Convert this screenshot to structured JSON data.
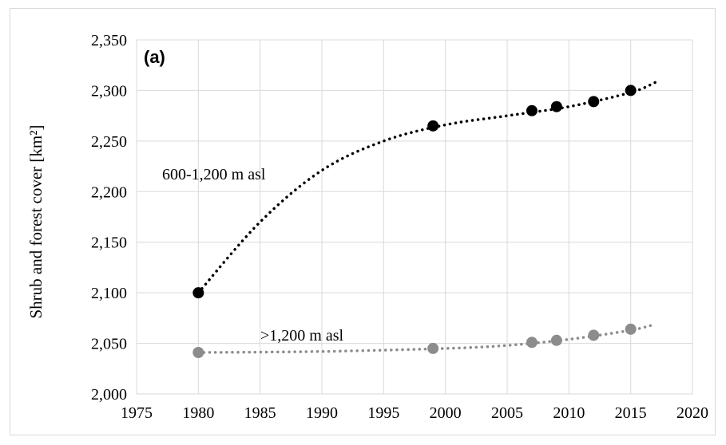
{
  "chart_data": {
    "type": "scatter",
    "panel_label": "(a)",
    "ylabel": "Shrub and forest cover [km²]",
    "xlim": [
      1975,
      2020
    ],
    "ylim": [
      2000,
      2350
    ],
    "x_ticks": [
      1975,
      1980,
      1985,
      1990,
      1995,
      2000,
      2005,
      2010,
      2015,
      2020
    ],
    "y_ticks": [
      2000,
      2050,
      2100,
      2150,
      2200,
      2250,
      2300,
      2350
    ],
    "grid": true,
    "legend": "none",
    "series": [
      {
        "name": "600-1,200 m asl",
        "color": "#000000",
        "points": [
          {
            "x": 1980,
            "y": 2100
          },
          {
            "x": 1999,
            "y": 2265
          },
          {
            "x": 2007,
            "y": 2280
          },
          {
            "x": 2009,
            "y": 2284
          },
          {
            "x": 2012,
            "y": 2289
          },
          {
            "x": 2015,
            "y": 2300
          }
        ],
        "trendline": [
          {
            "x": 1980,
            "y": 2100
          },
          {
            "x": 1985,
            "y": 2170
          },
          {
            "x": 1990,
            "y": 2221
          },
          {
            "x": 1995,
            "y": 2250
          },
          {
            "x": 2000,
            "y": 2266
          },
          {
            "x": 2005,
            "y": 2275
          },
          {
            "x": 2010,
            "y": 2284
          },
          {
            "x": 2015,
            "y": 2298
          },
          {
            "x": 2017,
            "y": 2308
          }
        ]
      },
      {
        "name": ">1,200 m asl",
        "color": "#8c8c8c",
        "points": [
          {
            "x": 1980,
            "y": 2041
          },
          {
            "x": 1999,
            "y": 2045
          },
          {
            "x": 2007,
            "y": 2051
          },
          {
            "x": 2009,
            "y": 2053
          },
          {
            "x": 2012,
            "y": 2058
          },
          {
            "x": 2015,
            "y": 2064
          }
        ],
        "trendline": [
          {
            "x": 1980,
            "y": 2041
          },
          {
            "x": 1990,
            "y": 2042
          },
          {
            "x": 2000,
            "y": 2045
          },
          {
            "x": 2005,
            "y": 2048
          },
          {
            "x": 2010,
            "y": 2054
          },
          {
            "x": 2015,
            "y": 2063
          },
          {
            "x": 2017,
            "y": 2069
          }
        ]
      }
    ]
  }
}
